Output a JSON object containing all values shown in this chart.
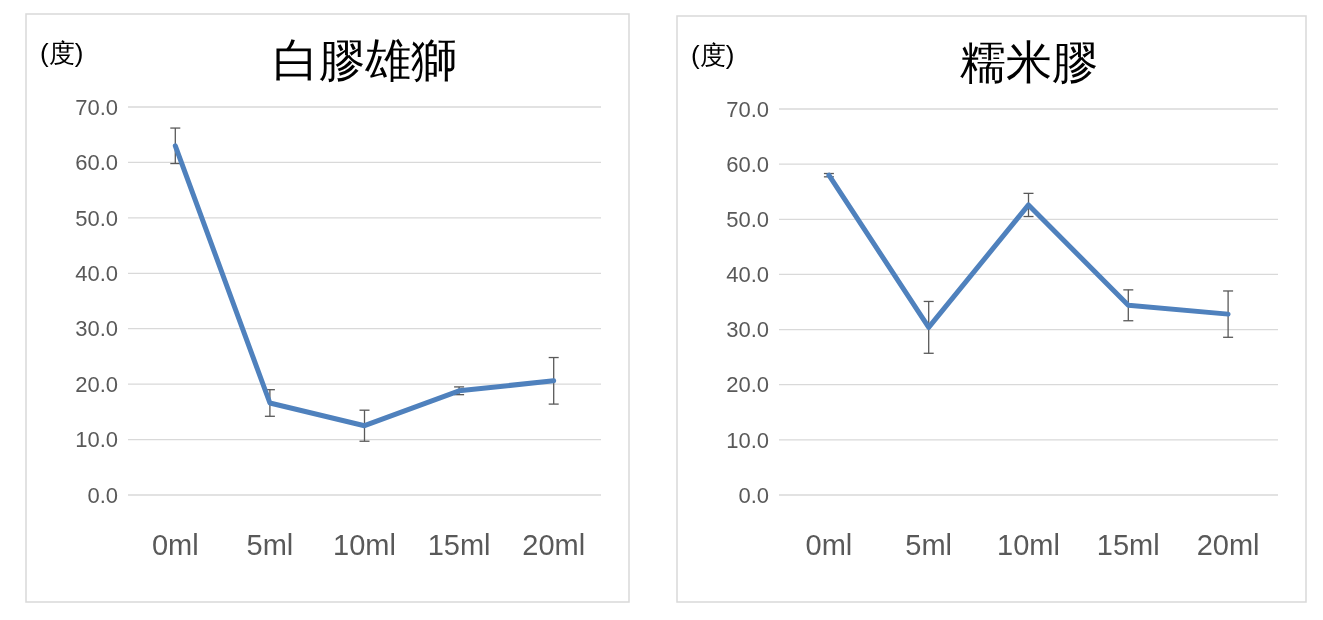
{
  "chart_data": [
    {
      "type": "line",
      "title": "白膠雄獅",
      "ylabel": "(度)",
      "categories": [
        "0ml",
        "5ml",
        "10ml",
        "15ml",
        "20ml"
      ],
      "series": [
        {
          "color": "#4f81bd",
          "values": [
            63.0,
            16.6,
            12.5,
            18.8,
            20.6
          ],
          "errors": [
            3.2,
            2.4,
            2.8,
            0.7,
            4.2
          ]
        }
      ],
      "ylim": [
        0,
        70
      ],
      "yticks": [
        {
          "value": 0,
          "label": "0.0"
        },
        {
          "value": 10,
          "label": "10.0"
        },
        {
          "value": 20,
          "label": "20.0"
        },
        {
          "value": 30,
          "label": "30.0"
        },
        {
          "value": 40,
          "label": "40.0"
        },
        {
          "value": 50,
          "label": "50.0"
        },
        {
          "value": 60,
          "label": "60.0"
        },
        {
          "value": 70,
          "label": "70.0"
        }
      ],
      "grid": "y",
      "marker": "none"
    },
    {
      "type": "line",
      "title": "糯米膠",
      "ylabel": "(度)",
      "categories": [
        "0ml",
        "5ml",
        "10ml",
        "15ml",
        "20ml"
      ],
      "series": [
        {
          "color": "#4f81bd",
          "values": [
            58.0,
            30.4,
            52.6,
            34.4,
            32.8
          ],
          "errors": [
            0.3,
            4.7,
            2.1,
            2.8,
            4.2
          ]
        }
      ],
      "ylim": [
        0,
        70
      ],
      "yticks": [
        {
          "value": 0,
          "label": "0.0"
        },
        {
          "value": 10,
          "label": "10.0"
        },
        {
          "value": 20,
          "label": "20.0"
        },
        {
          "value": 30,
          "label": "30.0"
        },
        {
          "value": 40,
          "label": "40.0"
        },
        {
          "value": 50,
          "label": "50.0"
        },
        {
          "value": 60,
          "label": "60.0"
        },
        {
          "value": 70,
          "label": "70.0"
        }
      ],
      "grid": "y",
      "marker": "none"
    }
  ]
}
